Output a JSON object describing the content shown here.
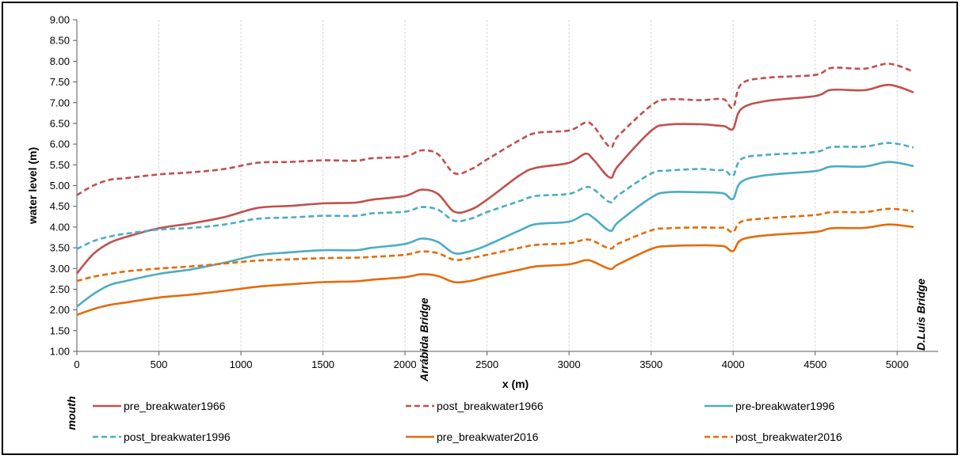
{
  "chart_data": {
    "type": "line",
    "xlabel": "x (m)",
    "ylabel": "water level (m)",
    "xlim": [
      0,
      5250
    ],
    "ylim": [
      1.0,
      9.0
    ],
    "x_ticks": [
      "0",
      "500",
      "1000",
      "1500",
      "2000",
      "2500",
      "3000",
      "3500",
      "4000",
      "4500",
      "5000"
    ],
    "y_ticks": [
      "1.00",
      "1.50",
      "2.00",
      "2.50",
      "3.00",
      "3.50",
      "4.00",
      "4.50",
      "5.00",
      "5.50",
      "6.00",
      "6.50",
      "7.00",
      "7.50",
      "8.00",
      "8.50",
      "9.00"
    ],
    "grid": {
      "vertical": true,
      "horizontal": false
    },
    "annotations": [
      {
        "text": "mouth",
        "x": 0
      },
      {
        "text": "Arrábida Bridge",
        "x": 2150
      },
      {
        "text": "D.Luis Bridge",
        "x": 5100
      }
    ],
    "x": [
      0,
      100,
      200,
      300,
      500,
      700,
      900,
      1100,
      1300,
      1500,
      1700,
      1800,
      2000,
      2100,
      2200,
      2300,
      2400,
      2500,
      2700,
      2800,
      3000,
      3100,
      3150,
      3250,
      3300,
      3500,
      3600,
      3800,
      3900,
      3950,
      4000,
      4050,
      4200,
      4500,
      4600,
      4800,
      4950,
      5100
    ],
    "series": [
      {
        "name": "pre_breakwater1966",
        "color": "#c0504d",
        "dash": "solid",
        "values": [
          2.88,
          3.35,
          3.62,
          3.76,
          3.97,
          4.09,
          4.24,
          4.46,
          4.51,
          4.57,
          4.59,
          4.66,
          4.75,
          4.9,
          4.8,
          4.37,
          4.42,
          4.66,
          5.25,
          5.43,
          5.55,
          5.77,
          5.62,
          5.19,
          5.48,
          6.32,
          6.47,
          6.48,
          6.45,
          6.43,
          6.37,
          6.85,
          7.04,
          7.16,
          7.31,
          7.3,
          7.43,
          7.25
        ]
      },
      {
        "name": "post_breakwater1966",
        "color": "#c0504d",
        "dash": "dashed",
        "values": [
          4.77,
          5.0,
          5.14,
          5.18,
          5.27,
          5.32,
          5.4,
          5.55,
          5.57,
          5.61,
          5.6,
          5.66,
          5.7,
          5.85,
          5.76,
          5.3,
          5.39,
          5.63,
          6.1,
          6.27,
          6.33,
          6.52,
          6.43,
          5.93,
          6.2,
          6.93,
          7.08,
          7.06,
          7.09,
          7.07,
          6.88,
          7.45,
          7.6,
          7.67,
          7.84,
          7.82,
          7.94,
          7.75
        ]
      },
      {
        "name": "pre-breakwater1996",
        "color": "#4bacc6",
        "dash": "solid",
        "values": [
          2.08,
          2.38,
          2.6,
          2.7,
          2.87,
          2.98,
          3.14,
          3.32,
          3.39,
          3.44,
          3.44,
          3.5,
          3.59,
          3.72,
          3.64,
          3.37,
          3.42,
          3.56,
          3.92,
          4.07,
          4.13,
          4.31,
          4.22,
          3.91,
          4.12,
          4.71,
          4.84,
          4.84,
          4.83,
          4.8,
          4.68,
          5.09,
          5.25,
          5.35,
          5.46,
          5.46,
          5.57,
          5.47
        ]
      },
      {
        "name": "post_breakwater1996",
        "color": "#4bacc6",
        "dash": "dashed",
        "values": [
          3.47,
          3.66,
          3.77,
          3.84,
          3.94,
          3.98,
          4.06,
          4.2,
          4.23,
          4.27,
          4.27,
          4.33,
          4.37,
          4.48,
          4.42,
          4.15,
          4.2,
          4.36,
          4.63,
          4.75,
          4.8,
          4.96,
          4.91,
          4.6,
          4.77,
          5.29,
          5.36,
          5.4,
          5.37,
          5.37,
          5.24,
          5.64,
          5.74,
          5.81,
          5.93,
          5.94,
          6.03,
          5.92
        ]
      },
      {
        "name": "pre_breakwater2016",
        "color": "#e36c0a",
        "dash": "solid",
        "values": [
          1.88,
          2.02,
          2.12,
          2.18,
          2.3,
          2.37,
          2.46,
          2.56,
          2.62,
          2.67,
          2.69,
          2.73,
          2.79,
          2.86,
          2.82,
          2.67,
          2.7,
          2.8,
          2.97,
          3.05,
          3.1,
          3.2,
          3.16,
          2.99,
          3.1,
          3.47,
          3.54,
          3.56,
          3.55,
          3.53,
          3.42,
          3.69,
          3.8,
          3.88,
          3.97,
          3.98,
          4.06,
          4.0
        ]
      },
      {
        "name": "post_breakwater2016",
        "color": "#e36c0a",
        "dash": "dashed",
        "values": [
          2.7,
          2.8,
          2.87,
          2.93,
          3.0,
          3.05,
          3.12,
          3.19,
          3.22,
          3.25,
          3.26,
          3.28,
          3.33,
          3.41,
          3.37,
          3.21,
          3.25,
          3.33,
          3.5,
          3.57,
          3.61,
          3.7,
          3.66,
          3.48,
          3.6,
          3.92,
          3.97,
          3.99,
          3.98,
          3.98,
          3.88,
          4.13,
          4.21,
          4.29,
          4.36,
          4.36,
          4.44,
          4.38
        ]
      }
    ],
    "legend": {
      "position": "bottom",
      "columns": 3
    }
  }
}
